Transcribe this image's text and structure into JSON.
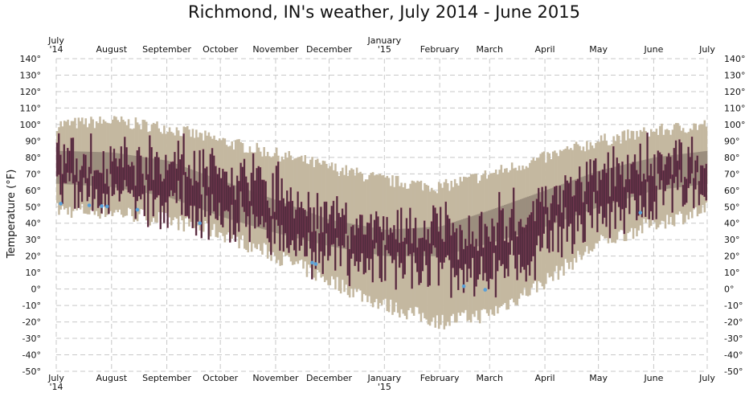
{
  "chart_data": {
    "type": "bar",
    "title": "Richmond, IN's weather, July 2014 - June 2015",
    "ylabel": "Temperature (°F)",
    "xlabel": "",
    "ylim": [
      -50,
      140
    ],
    "y_ticks": [
      -50,
      -40,
      -30,
      -20,
      -10,
      0,
      10,
      20,
      30,
      40,
      50,
      60,
      70,
      80,
      90,
      100,
      110,
      120,
      130,
      140
    ],
    "y_tick_suffix": "°",
    "x_tick_labels": [
      {
        "day": 0,
        "label": "July",
        "sub": "'14"
      },
      {
        "day": 31,
        "label": "August",
        "sub": ""
      },
      {
        "day": 62,
        "label": "September",
        "sub": ""
      },
      {
        "day": 92,
        "label": "October",
        "sub": ""
      },
      {
        "day": 123,
        "label": "November",
        "sub": ""
      },
      {
        "day": 153,
        "label": "December",
        "sub": ""
      },
      {
        "day": 184,
        "label": "January",
        "sub": "'15"
      },
      {
        "day": 215,
        "label": "February",
        "sub": ""
      },
      {
        "day": 243,
        "label": "March",
        "sub": ""
      },
      {
        "day": 274,
        "label": "April",
        "sub": ""
      },
      {
        "day": 304,
        "label": "May",
        "sub": ""
      },
      {
        "day": 335,
        "label": "June",
        "sub": ""
      },
      {
        "day": 365,
        "label": "July",
        "sub": ""
      }
    ],
    "n_days": 365,
    "grid": true,
    "colors": {
      "record_range": "#c4b8a0",
      "normal_range": "#9b8e7e",
      "actual_range": "#4a2a3a",
      "actual_edge": "#8a3a5a",
      "record_low_dot": "#5aa0d8"
    },
    "series": [
      {
        "key": "record_range",
        "days": [
          0,
          31,
          62,
          92,
          123,
          153,
          184,
          215,
          243,
          274,
          304,
          335,
          365
        ],
        "high": [
          100,
          102,
          98,
          90,
          82,
          74,
          66,
          62,
          70,
          80,
          90,
          96,
          100
        ],
        "low": [
          48,
          47,
          42,
          34,
          20,
          5,
          -10,
          -20,
          -15,
          5,
          28,
          40,
          48
        ]
      },
      {
        "key": "normal_range",
        "days": [
          0,
          31,
          62,
          92,
          123,
          153,
          184,
          215,
          243,
          274,
          304,
          335,
          365
        ],
        "high": [
          84,
          83,
          78,
          66,
          54,
          42,
          36,
          38,
          48,
          60,
          72,
          80,
          84
        ],
        "low": [
          64,
          62,
          56,
          44,
          34,
          26,
          20,
          20,
          28,
          38,
          50,
          60,
          64
        ]
      },
      {
        "key": "actual_range",
        "days": [
          0,
          31,
          62,
          92,
          123,
          153,
          184,
          215,
          243,
          274,
          304,
          335,
          365
        ],
        "high": [
          80,
          80,
          82,
          74,
          62,
          45,
          40,
          38,
          40,
          55,
          72,
          80,
          80
        ],
        "low": [
          58,
          56,
          52,
          42,
          30,
          18,
          15,
          10,
          5,
          25,
          42,
          56,
          60
        ]
      }
    ],
    "record_low_days": [
      2,
      18,
      25,
      28,
      45,
      80,
      143,
      145,
      228,
      240,
      327
    ]
  }
}
